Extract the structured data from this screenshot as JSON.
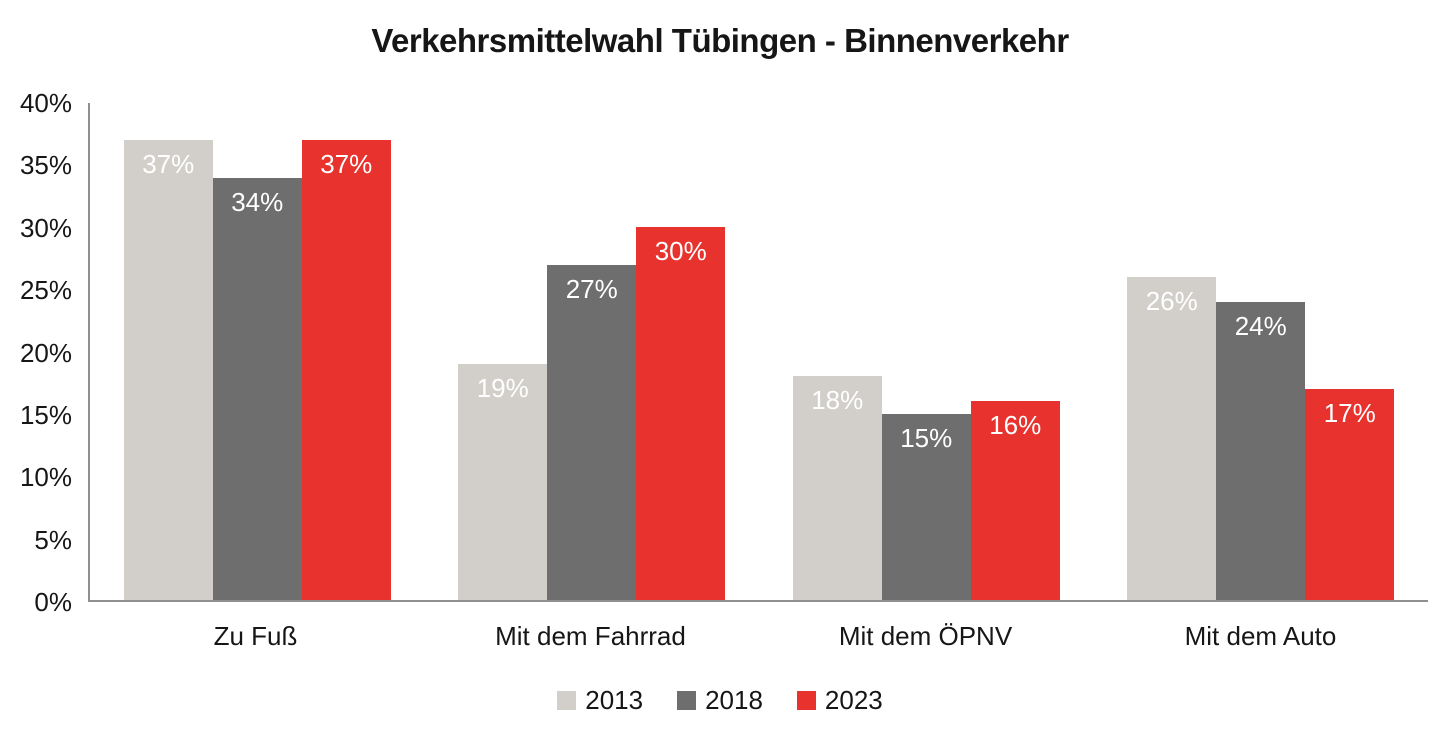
{
  "chart_data": {
    "type": "bar",
    "title": "Verkehrsmittelwahl Tübingen - Binnenverkehr",
    "categories": [
      "Zu Fuß",
      "Mit dem Fahrrad",
      "Mit dem ÖPNV",
      "Mit dem Auto"
    ],
    "series": [
      {
        "name": "2013",
        "color": "#d2cfcb",
        "values": [
          37,
          19,
          18,
          26
        ]
      },
      {
        "name": "2018",
        "color": "#6e6e6e",
        "values": [
          34,
          27,
          15,
          24
        ]
      },
      {
        "name": "2023",
        "color": "#e7322e",
        "values": [
          37,
          30,
          16,
          17
        ]
      }
    ],
    "value_suffix": "%",
    "data_labels": {
      "position": "inside-end",
      "color": "#ffffff"
    },
    "xlabel": "",
    "ylabel": "",
    "ylim": [
      0,
      40
    ],
    "yticks": [
      "0%",
      "5%",
      "10%",
      "15%",
      "20%",
      "25%",
      "30%",
      "35%",
      "40%"
    ],
    "grid": false,
    "legend_position": "bottom",
    "axis_color": "#8f8f8f",
    "text_color": "#161616",
    "background_color": "#ffffff"
  }
}
